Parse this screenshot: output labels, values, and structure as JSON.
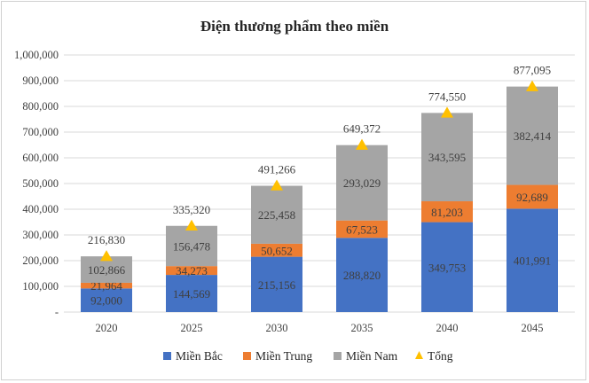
{
  "chart_data": {
    "type": "bar",
    "stacked": true,
    "title": "Điện thương phẩm theo miền",
    "categories": [
      "2020",
      "2025",
      "2030",
      "2035",
      "2040",
      "2045"
    ],
    "series": [
      {
        "name": "Miền Bắc",
        "color": "#4472C4",
        "values": [
          92000,
          144569,
          215156,
          288820,
          349753,
          401991
        ],
        "labels": [
          "92,000",
          "144,569",
          "215,156",
          "288,820",
          "349,753",
          "401,991"
        ]
      },
      {
        "name": "Miền Trung",
        "color": "#ED7D31",
        "values": [
          21964,
          34273,
          50652,
          67523,
          81203,
          92689
        ],
        "labels": [
          "21,964",
          "34,273",
          "50,652",
          "67,523",
          "81,203",
          "92,689"
        ]
      },
      {
        "name": "Miền Nam",
        "color": "#A5A5A5",
        "values": [
          102866,
          156478,
          225458,
          293029,
          343595,
          382414
        ],
        "labels": [
          "102,866",
          "156,478",
          "225,458",
          "293,029",
          "343,595",
          "382,414"
        ]
      }
    ],
    "total": {
      "name": "Tổng",
      "color": "#FFC000",
      "marker": "triangle",
      "values": [
        216830,
        335320,
        491266,
        649372,
        774550,
        877095
      ],
      "labels": [
        "216,830",
        "335,320",
        "491,266",
        "649,372",
        "774,550",
        "877,095"
      ]
    },
    "ylim": [
      0,
      1000000
    ],
    "yticks": [
      0,
      100000,
      200000,
      300000,
      400000,
      500000,
      600000,
      700000,
      800000,
      900000,
      1000000
    ],
    "ytick_labels": [
      "-",
      "100,000",
      "200,000",
      "300,000",
      "400,000",
      "500,000",
      "600,000",
      "700,000",
      "800,000",
      "900,000",
      "1,000,000"
    ],
    "legend_position": "bottom",
    "grid": true
  }
}
